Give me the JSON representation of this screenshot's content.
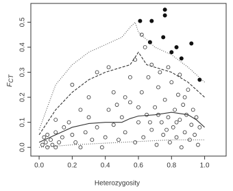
{
  "chart_data": {
    "type": "scatter",
    "xlabel": "Heterozygosity",
    "ylabel_main": "F",
    "ylabel_sub": "CT",
    "xlim": [
      -0.05,
      1.13
    ],
    "ylim": [
      -0.035,
      0.575
    ],
    "xticks": [
      {
        "value": 0,
        "label": "0.0"
      },
      0.2,
      0.4,
      0.6,
      0.8,
      {
        "value": 1,
        "label": "1.0"
      }
    ],
    "yticks": [
      {
        "value": 0,
        "label": "0.0"
      },
      0.1,
      0.2,
      0.3,
      0.4,
      0.5
    ],
    "series": [
      {
        "marker": "open",
        "color": "#333333",
        "x": [
          0.02,
          0.04,
          0.05,
          0.07,
          0.08,
          0.1,
          0.12,
          0.14,
          0.1,
          0.05,
          0.15,
          0.18,
          0.2,
          0.22,
          0.25,
          0.28,
          0.3,
          0.32,
          0.35,
          0.38,
          0.4,
          0.42,
          0.45,
          0.48,
          0.5,
          0.52,
          0.55,
          0.58,
          0.6,
          0.62,
          0.63,
          0.65,
          0.66,
          0.68,
          0.7,
          0.71,
          0.72,
          0.74,
          0.75,
          0.76,
          0.78,
          0.79,
          0.8,
          0.81,
          0.82,
          0.83,
          0.84,
          0.85,
          0.86,
          0.87,
          0.88,
          0.89,
          0.9,
          0.91,
          0.92,
          0.93,
          0.94,
          0.95,
          0.96,
          0.97,
          0.35,
          0.42,
          0.2,
          0.58,
          0.62,
          0.64,
          0.68,
          0.3,
          0.25,
          0.45,
          0.52,
          0.55,
          0.73,
          0.78,
          0.85,
          0.88,
          0.67,
          0.77,
          0.83,
          0.72,
          0.6,
          0.47,
          0.1,
          0.03
        ],
        "y": [
          0.01,
          0.02,
          0.0,
          0.03,
          0.01,
          0.0,
          0.02,
          0.04,
          0.06,
          0.05,
          0.08,
          0.1,
          0.05,
          0.02,
          0.0,
          0.06,
          0.12,
          0.03,
          0.08,
          0.0,
          0.04,
          0.15,
          0.09,
          0.03,
          0.12,
          0.06,
          0.18,
          0.02,
          0.1,
          0.22,
          0.04,
          0.13,
          0.28,
          0.07,
          0.16,
          0.01,
          0.24,
          0.1,
          0.05,
          0.19,
          0.12,
          0.02,
          0.26,
          0.08,
          0.15,
          0.04,
          0.21,
          0.11,
          0.0,
          0.17,
          0.06,
          0.13,
          0.23,
          0.03,
          0.09,
          0.15,
          0.05,
          0.12,
          0.01,
          0.08,
          0.3,
          0.32,
          0.25,
          0.35,
          0.45,
          0.4,
          0.33,
          0.2,
          0.15,
          0.22,
          0.2,
          0.28,
          0.3,
          0.32,
          0.29,
          0.2,
          0.1,
          0.07,
          0.1,
          0.13,
          0.16,
          0.17,
          0.11,
          0.04
        ]
      },
      {
        "marker": "filled",
        "color": "#111111",
        "x": [
          0.61,
          0.68,
          0.76,
          0.76,
          0.67,
          0.75,
          0.83,
          0.8,
          0.86,
          0.92,
          0.97
        ],
        "y": [
          0.505,
          0.505,
          0.55,
          0.527,
          0.42,
          0.44,
          0.4,
          0.38,
          0.355,
          0.415,
          0.27
        ]
      },
      {
        "line": "solid",
        "color": "#333333",
        "x": [
          0,
          0.1,
          0.2,
          0.3,
          0.4,
          0.5,
          0.55,
          0.6,
          0.7,
          0.8,
          0.9,
          0.95,
          1.0
        ],
        "y": [
          0.02,
          0.05,
          0.08,
          0.095,
          0.1,
          0.1,
          0.115,
          0.125,
          0.13,
          0.14,
          0.13,
          0.11,
          0.08
        ]
      },
      {
        "line": "dashed",
        "color": "#333333",
        "x": [
          0,
          0.1,
          0.2,
          0.3,
          0.4,
          0.5,
          0.55,
          0.6,
          0.65,
          0.7,
          0.8,
          0.9,
          1.0
        ],
        "y": [
          0.05,
          0.15,
          0.22,
          0.27,
          0.3,
          0.32,
          0.33,
          0.38,
          0.33,
          0.32,
          0.3,
          0.26,
          0.2
        ]
      },
      {
        "line": "dotted",
        "color": "#555555",
        "x": [
          0,
          0.1,
          0.2,
          0.3,
          0.4,
          0.5,
          0.55,
          0.58,
          0.6,
          0.65,
          0.7,
          0.8,
          0.9,
          1.0
        ],
        "y": [
          0.07,
          0.25,
          0.33,
          0.38,
          0.41,
          0.44,
          0.48,
          0.5,
          0.46,
          0.43,
          0.4,
          0.37,
          0.32,
          0.26
        ]
      },
      {
        "line": "dotted",
        "color": "#555555",
        "x": [
          0,
          0.2,
          0.5,
          0.8,
          1.0
        ],
        "y": [
          0.0,
          0.01,
          0.02,
          0.03,
          0.03
        ]
      }
    ]
  }
}
